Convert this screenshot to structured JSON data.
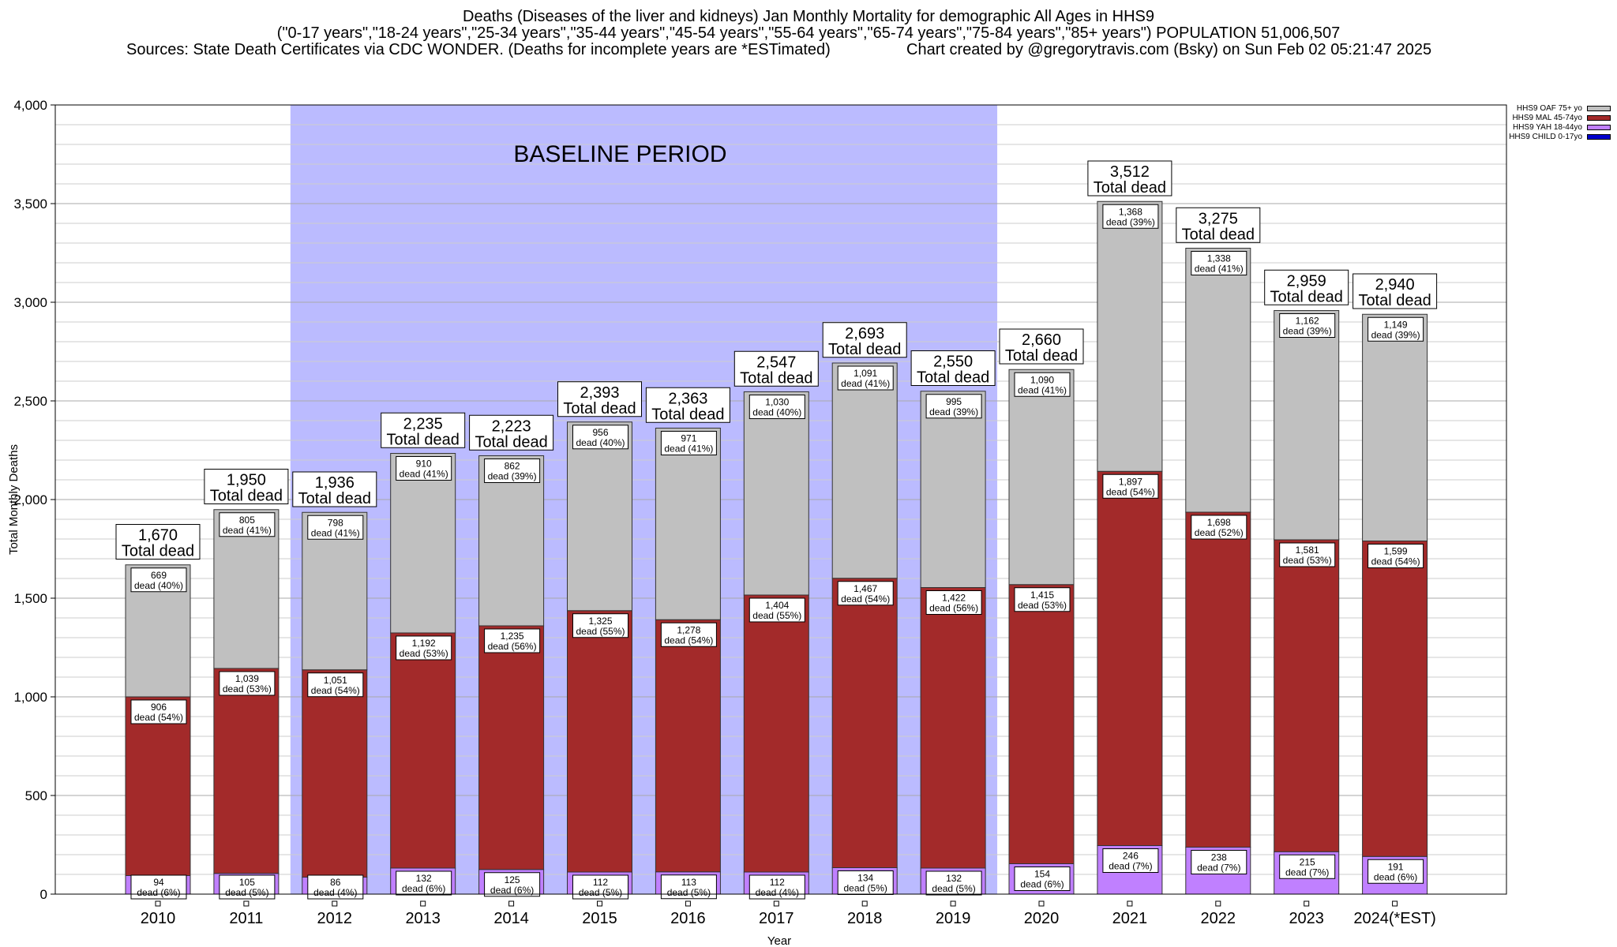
{
  "header": {
    "title_line1": "Deaths (Diseases of the liver and kidneys) Jan Monthly Mortality for demographic All Ages in HHS9",
    "title_line2": "(\"0-17 years\",\"18-24 years\",\"25-34 years\",\"35-44 years\",\"45-54 years\",\"55-64 years\",\"65-74 years\",\"75-84 years\",\"85+ years\") POPULATION 51,006,507",
    "sources": "Sources: State Death Certificates via CDC WONDER. (Deaths for incomplete years are *ESTimated)",
    "credit": "Chart created by @gregorytravis.com (Bsky) on Sun Feb 02 05:21:47 2025"
  },
  "legend": [
    {
      "label": "HHS9 OAF 75+ yo",
      "color": "#c0c0c0"
    },
    {
      "label": "HHS9 MAL 45-74yo",
      "color": "#a32a2a"
    },
    {
      "label": "HHS9 YAH 18-44yo",
      "color": "#c080ff"
    },
    {
      "label": "HHS9 CHILD 0-17yo",
      "color": "#0000cc"
    }
  ],
  "chart_data": {
    "type": "bar",
    "stacked": true,
    "xlabel": "Year",
    "ylabel": "Total Monthly Deaths",
    "ylim": [
      0,
      4000
    ],
    "yticks": [
      0,
      500,
      1000,
      1500,
      2000,
      2500,
      3000,
      3500,
      4000
    ],
    "ytick_labels": [
      "0",
      "500",
      "1,000",
      "1,500",
      "2,000",
      "2,500",
      "3,000",
      "3,500",
      "4,000"
    ],
    "grid": true,
    "baseline_label": "BASELINE PERIOD",
    "baseline_range": [
      "2012",
      "2019"
    ],
    "total_suffix": "Total dead",
    "categories": [
      "2010",
      "2011",
      "2012",
      "2013",
      "2014",
      "2015",
      "2016",
      "2017",
      "2018",
      "2019",
      "2020",
      "2021",
      "2022",
      "2023",
      "2024(*EST)"
    ],
    "totals": [
      1670,
      1950,
      1936,
      2235,
      2223,
      2393,
      2363,
      2547,
      2693,
      2550,
      2660,
      3512,
      3275,
      2959,
      2940
    ],
    "total_labels": [
      "1,670",
      "1,950",
      "1,936",
      "2,235",
      "2,223",
      "2,393",
      "2,363",
      "2,547",
      "2,693",
      "2,550",
      "2,660",
      "3,512",
      "3,275",
      "2,959",
      "2,940"
    ],
    "series": [
      {
        "name": "HHS9 CHILD 0-17yo",
        "color": "#0000cc",
        "values": [
          0,
          0,
          0,
          0,
          0,
          0,
          0,
          0,
          0,
          0,
          0,
          0,
          0,
          0,
          0
        ],
        "labels": []
      },
      {
        "name": "HHS9 YAH 18-44yo",
        "color": "#c080ff",
        "values": [
          94,
          105,
          86,
          132,
          125,
          112,
          113,
          112,
          134,
          132,
          154,
          246,
          238,
          215,
          191
        ],
        "labels": [
          "94|dead (6%)",
          "105|dead (5%)",
          "86|dead (4%)",
          "132|dead (6%)",
          "125|dead (6%)",
          "112|dead (5%)",
          "113|dead (5%)",
          "112|dead (4%)",
          "134|dead (5%)",
          "132|dead (5%)",
          "154|dead (6%)",
          "246|dead (7%)",
          "238|dead (7%)",
          "215|dead (7%)",
          "191|dead (6%)"
        ]
      },
      {
        "name": "HHS9 MAL 45-74yo",
        "color": "#a32a2a",
        "values": [
          906,
          1039,
          1051,
          1192,
          1235,
          1325,
          1278,
          1404,
          1467,
          1422,
          1415,
          1897,
          1698,
          1581,
          1599
        ],
        "labels": [
          "906|dead (54%)",
          "1,039|dead (53%)",
          "1,051|dead (54%)",
          "1,192|dead (53%)",
          "1,235|dead (56%)",
          "1,325|dead (55%)",
          "1,278|dead (54%)",
          "1,404|dead (55%)",
          "1,467|dead (54%)",
          "1,422|dead (56%)",
          "1,415|dead (53%)",
          "1,897|dead (54%)",
          "1,698|dead (52%)",
          "1,581|dead (53%)",
          "1,599|dead (54%)"
        ]
      },
      {
        "name": "HHS9 OAF 75+ yo",
        "color": "#c0c0c0",
        "values": [
          669,
          805,
          798,
          910,
          862,
          956,
          971,
          1030,
          1091,
          995,
          1090,
          1368,
          1338,
          1162,
          1149
        ],
        "labels": [
          "669|dead (40%)",
          "805|dead (41%)",
          "798|dead (41%)",
          "910|dead (41%)",
          "862|dead (39%)",
          "956|dead (40%)",
          "971|dead (41%)",
          "1,030|dead (40%)",
          "1,091|dead (41%)",
          "995|dead (39%)",
          "1,090|dead (41%)",
          "1,368|dead (39%)",
          "1,338|dead (41%)",
          "1,162|dead (39%)",
          "1,149|dead (39%)"
        ]
      }
    ],
    "colors": {
      "baseline": "#bbbbff",
      "plot_bg": "#ffffff",
      "grid": "#cccccc"
    }
  }
}
